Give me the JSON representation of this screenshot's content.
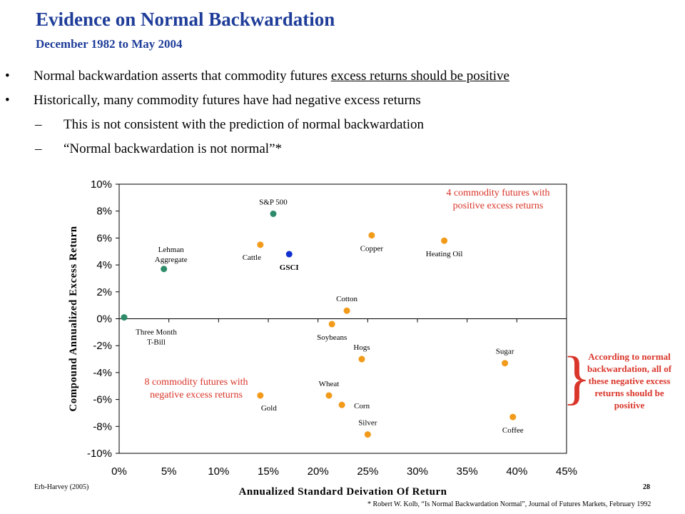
{
  "slide": {
    "title": "Evidence on Normal Backwardation",
    "subtitle": "December  1982 to May 2004",
    "bullets": [
      {
        "marker": "•",
        "pre": "Normal backwardation asserts that commodity futures ",
        "underlined": "excess returns should be positive"
      },
      {
        "marker": "•",
        "text": "Historically, many commodity futures have had negative excess returns"
      },
      {
        "marker": "–",
        "text": "This is not consistent with the prediction of normal backwardation"
      },
      {
        "marker": "–",
        "text": "“Normal backwardation is not normal”*"
      }
    ],
    "note_positive": "4 commodity futures with positive excess returns",
    "note_negative": "8 commodity futures with negative excess returns",
    "side_note": "According to normal backwardation, all of these negative excess returns should be positive",
    "brace": "}",
    "footer_left": "Erb-Harvey (2005)",
    "page_number": "28",
    "footnote": "* Robert W. Kolb, “Is Normal Backwardation Normal”, Journal of Futures Markets, February 1992"
  },
  "colors": {
    "title": "#1f3d99",
    "orange": "#f29a1a",
    "green": "#2e8b6a",
    "blue": "#1030d0",
    "red": "#d9352a"
  },
  "chart_data": {
    "type": "scatter",
    "xlabel": "Annualized Standard Deivation Of Return",
    "ylabel": "Compound Annualized Excess Return",
    "xlim": [
      0,
      0.45
    ],
    "ylim": [
      -0.1,
      0.1
    ],
    "x_ticks": [
      0,
      0.05,
      0.1,
      0.15,
      0.2,
      0.25,
      0.3,
      0.35,
      0.4,
      0.45
    ],
    "x_tick_labels": [
      "0%",
      "5%",
      "10%",
      "15%",
      "20%",
      "25%",
      "30%",
      "35%",
      "40%",
      "45%"
    ],
    "y_ticks": [
      0.1,
      0.08,
      0.06,
      0.04,
      0.02,
      0,
      -0.02,
      -0.04,
      -0.06,
      -0.08,
      -0.1
    ],
    "y_tick_labels": [
      "10%",
      "8%",
      "6%",
      "4%",
      "2%",
      "0%",
      "-2%",
      "-4%",
      "-6%",
      "-8%",
      "-10%"
    ],
    "grid": false,
    "points": [
      {
        "label": "S&P 500",
        "x": 0.155,
        "y": 0.078,
        "group": "green",
        "label_pos": "above"
      },
      {
        "label": "Lehman Aggregate",
        "x": 0.045,
        "y": 0.037,
        "group": "green",
        "label_pos": "above2"
      },
      {
        "label": "Three Month T-Bill",
        "x": 0.005,
        "y": 0.001,
        "group": "green",
        "label_pos": "belowright2"
      },
      {
        "label": "GSCI",
        "x": 0.171,
        "y": 0.048,
        "group": "blue",
        "label_pos": "below",
        "bold": true
      },
      {
        "label": "Cattle",
        "x": 0.142,
        "y": 0.055,
        "group": "orange",
        "label_pos": "belowleft"
      },
      {
        "label": "Copper",
        "x": 0.254,
        "y": 0.062,
        "group": "orange",
        "label_pos": "below"
      },
      {
        "label": "Heating Oil",
        "x": 0.327,
        "y": 0.058,
        "group": "orange",
        "label_pos": "below"
      },
      {
        "label": "Cotton",
        "x": 0.229,
        "y": 0.006,
        "group": "orange",
        "label_pos": "above"
      },
      {
        "label": "Soybeans",
        "x": 0.214,
        "y": -0.004,
        "group": "orange",
        "label_pos": "below"
      },
      {
        "label": "Hogs",
        "x": 0.244,
        "y": -0.03,
        "group": "orange",
        "label_pos": "above"
      },
      {
        "label": "Sugar",
        "x": 0.388,
        "y": -0.033,
        "group": "orange",
        "label_pos": "above"
      },
      {
        "label": "Gold",
        "x": 0.142,
        "y": -0.057,
        "group": "orange",
        "label_pos": "belowright"
      },
      {
        "label": "Wheat",
        "x": 0.211,
        "y": -0.057,
        "group": "orange",
        "label_pos": "above"
      },
      {
        "label": "Corn",
        "x": 0.224,
        "y": -0.064,
        "group": "orange",
        "label_pos": "right"
      },
      {
        "label": "Silver",
        "x": 0.25,
        "y": -0.086,
        "group": "orange",
        "label_pos": "above"
      },
      {
        "label": "Coffee",
        "x": 0.396,
        "y": -0.073,
        "group": "orange",
        "label_pos": "below"
      }
    ]
  }
}
